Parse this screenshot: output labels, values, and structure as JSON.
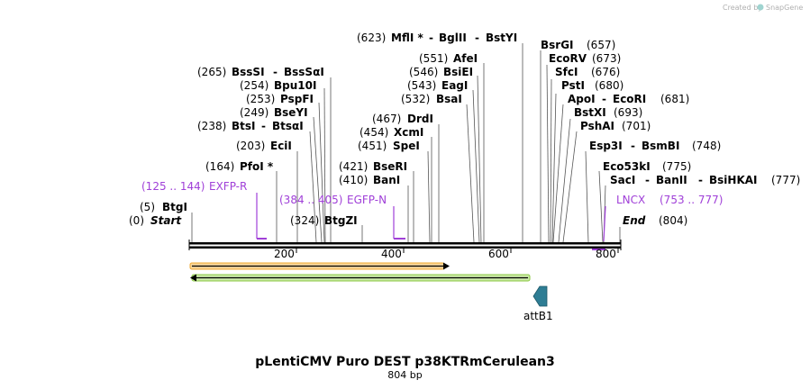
{
  "credit": {
    "prefix": "Created by",
    "brand": "SnapGene"
  },
  "title": "pLentiCMV Puro DEST p38KTRmCerulean3",
  "length_label": "804 bp",
  "axis": {
    "ticks": [
      "200",
      "400",
      "600",
      "800"
    ]
  },
  "sites": [
    {
      "pos": "(0)",
      "name": "Start",
      "kind": "endpoint"
    },
    {
      "pos": "(5)",
      "name": "BtgI"
    },
    {
      "pos": "(164)",
      "name": "PfoI *"
    },
    {
      "pos": "(203)",
      "name": "EciI"
    },
    {
      "pos": "(238)",
      "name": "BtsI",
      "name2": "BtsαI"
    },
    {
      "pos": "(249)",
      "name": "BseYI"
    },
    {
      "pos": "(253)",
      "name": "PspFI"
    },
    {
      "pos": "(254)",
      "name": "Bpu10I"
    },
    {
      "pos": "(265)",
      "name": "BssSI",
      "name2": "BssSαI"
    },
    {
      "pos": "(324)",
      "name": "BtgZI"
    },
    {
      "pos": "(410)",
      "name": "BanI"
    },
    {
      "pos": "(421)",
      "name": "BseRI"
    },
    {
      "pos": "(451)",
      "name": "SpeI"
    },
    {
      "pos": "(454)",
      "name": "XcmI"
    },
    {
      "pos": "(467)",
      "name": "DrdI"
    },
    {
      "pos": "(532)",
      "name": "BsaI"
    },
    {
      "pos": "(543)",
      "name": "EagI"
    },
    {
      "pos": "(546)",
      "name": "BsiEI"
    },
    {
      "pos": "(551)",
      "name": "AfeI"
    },
    {
      "pos": "(623)",
      "name": "MflI *",
      "name2": "BglII",
      "name3": "BstYI"
    },
    {
      "pos": "(657)",
      "name": "BsrGI"
    },
    {
      "pos": "(673)",
      "name": "EcoRV"
    },
    {
      "pos": "(676)",
      "name": "SfcI"
    },
    {
      "pos": "(680)",
      "name": "PstI"
    },
    {
      "pos": "(681)",
      "name": "ApoI",
      "name2": "EcoRI"
    },
    {
      "pos": "(693)",
      "name": "BstXI"
    },
    {
      "pos": "(701)",
      "name": "PshAI"
    },
    {
      "pos": "(748)",
      "name": "Esp3I",
      "name2": "BsmBI"
    },
    {
      "pos": "(775)",
      "name": "Eco53kI"
    },
    {
      "pos": "(777)",
      "name": "SacI",
      "name2": "BanII",
      "name3": "BsiHKAI"
    },
    {
      "pos": "(804)",
      "name": "End",
      "kind": "endpoint"
    }
  ],
  "primers": [
    {
      "range": "(125 .. 144)",
      "name": "EXFP-R"
    },
    {
      "range": "(384 .. 405)",
      "name": "EGFP-N"
    },
    {
      "range": "LNCX",
      "name": "(753 .. 777)"
    }
  ],
  "feature": {
    "name": "attB1"
  },
  "colors": {
    "primer": "#a040d8",
    "orf_top": "#f0a830",
    "orf_bottom": "#8ac840",
    "attb": "#2e7d94"
  }
}
